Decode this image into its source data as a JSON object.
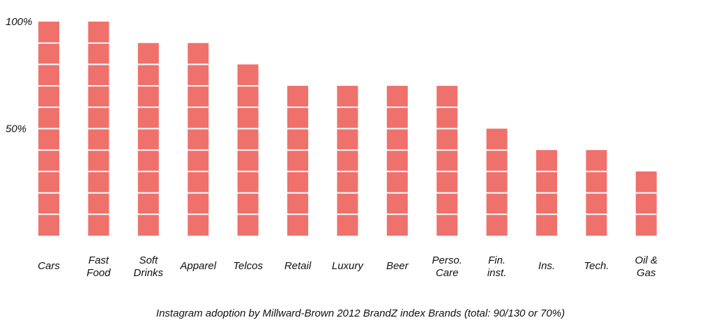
{
  "chart_data": {
    "type": "bar",
    "title": "Instagram adoption by Millward-Brown 2012 BrandZ index Brands (total: 90/130 or 70%)",
    "categories": [
      [
        "Cars"
      ],
      [
        "Fast",
        "Food"
      ],
      [
        "Soft",
        "Drinks"
      ],
      [
        "Apparel"
      ],
      [
        "Telcos"
      ],
      [
        "Retail"
      ],
      [
        "Luxury"
      ],
      [
        "Beer"
      ],
      [
        "Perso.",
        "Care"
      ],
      [
        "Fin.",
        "inst."
      ],
      [
        "Ins."
      ],
      [
        "Tech."
      ],
      [
        "Oil &",
        "Gas"
      ]
    ],
    "values": [
      100,
      100,
      90,
      90,
      80,
      70,
      70,
      70,
      70,
      50,
      40,
      40,
      30
    ],
    "ylim": [
      0,
      100
    ],
    "yticks": [
      {
        "value": 100,
        "label": "100%"
      },
      {
        "value": 50,
        "label": "50%"
      }
    ],
    "segment_size": 10,
    "grid": false,
    "legend": "none",
    "colors": {
      "bar": "#ef716c",
      "segment_line": "#ffffff",
      "text": "#111111"
    }
  }
}
